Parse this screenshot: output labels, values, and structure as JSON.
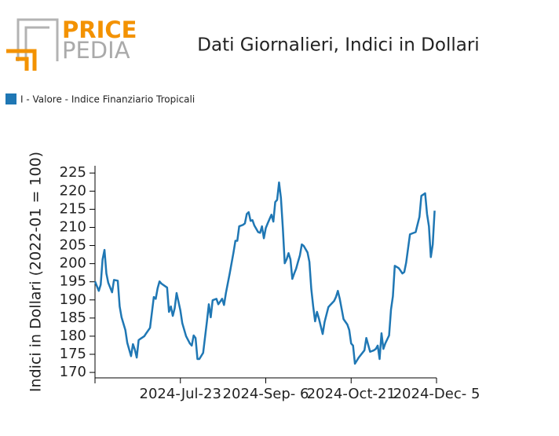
{
  "logo": {
    "top": "PRICE",
    "bottom": "PEDIA"
  },
  "chart_data": {
    "type": "line",
    "title": "Dati Giornalieri, Indici in Dollari",
    "y_label": "Indici in Dollari (2022-01 = 100)",
    "legend": "top-left",
    "x": [
      "2024-06-08",
      "2024-06-10",
      "2024-06-11",
      "2024-06-12",
      "2024-06-13",
      "2024-06-14",
      "2024-06-15",
      "2024-06-17",
      "2024-06-18",
      "2024-06-20",
      "2024-06-21",
      "2024-06-22",
      "2024-06-24",
      "2024-06-25",
      "2024-06-27",
      "2024-06-28",
      "2024-06-29",
      "2024-06-30",
      "2024-07-01",
      "2024-07-02",
      "2024-07-04",
      "2024-07-05",
      "2024-07-07",
      "2024-07-09",
      "2024-07-10",
      "2024-07-11",
      "2024-07-12",
      "2024-07-13",
      "2024-07-16",
      "2024-07-17",
      "2024-07-18",
      "2024-07-19",
      "2024-07-20",
      "2024-07-21",
      "2024-07-23",
      "2024-07-24",
      "2024-07-26",
      "2024-07-28",
      "2024-07-29",
      "2024-07-30",
      "2024-07-31",
      "2024-08-01",
      "2024-08-02",
      "2024-08-04",
      "2024-08-06",
      "2024-08-07",
      "2024-08-08",
      "2024-08-09",
      "2024-08-11",
      "2024-08-12",
      "2024-08-14",
      "2024-08-15",
      "2024-08-16",
      "2024-08-18",
      "2024-08-20",
      "2024-08-21",
      "2024-08-22",
      "2024-08-23",
      "2024-08-25",
      "2024-08-26",
      "2024-08-27",
      "2024-08-28",
      "2024-08-29",
      "2024-08-30",
      "2024-08-31",
      "2024-09-02",
      "2024-09-03",
      "2024-09-04",
      "2024-09-05",
      "2024-09-06",
      "2024-09-07",
      "2024-09-09",
      "2024-09-10",
      "2024-09-11",
      "2024-09-12",
      "2024-09-13",
      "2024-09-14",
      "2024-09-15",
      "2024-09-16",
      "2024-09-17",
      "2024-09-18",
      "2024-09-19",
      "2024-09-20",
      "2024-09-21",
      "2024-09-22",
      "2024-09-23",
      "2024-09-24",
      "2024-09-25",
      "2024-09-26",
      "2024-09-28",
      "2024-09-29",
      "2024-09-30",
      "2024-10-01",
      "2024-10-02",
      "2024-10-03",
      "2024-10-04",
      "2024-10-06",
      "2024-10-07",
      "2024-10-09",
      "2024-10-10",
      "2024-10-12",
      "2024-10-13",
      "2024-10-14",
      "2024-10-15",
      "2024-10-16",
      "2024-10-17",
      "2024-10-19",
      "2024-10-20",
      "2024-10-21",
      "2024-10-22",
      "2024-10-23",
      "2024-10-25",
      "2024-10-28",
      "2024-10-29",
      "2024-10-31",
      "2024-11-02",
      "2024-11-03",
      "2024-11-04",
      "2024-11-05",
      "2024-11-06",
      "2024-11-07",
      "2024-11-08",
      "2024-11-10",
      "2024-11-11",
      "2024-11-12",
      "2024-11-13",
      "2024-11-15",
      "2024-11-16",
      "2024-11-17",
      "2024-11-18",
      "2024-11-19",
      "2024-11-21",
      "2024-11-23",
      "2024-11-24",
      "2024-11-26",
      "2024-11-27",
      "2024-11-29",
      "2024-11-30",
      "2024-12-01",
      "2024-12-02",
      "2024-12-03",
      "2024-12-04"
    ],
    "series": [
      {
        "name": "I - Valore - Indice Finanziario Tropicali",
        "color": "#1f77b4",
        "values": [
          195.1,
          192.5,
          194.2,
          201.2,
          203.8,
          197.3,
          194.7,
          192.1,
          195.5,
          195.3,
          188.2,
          185.2,
          181.7,
          178.2,
          174.5,
          177.8,
          176.3,
          174.1,
          178.9,
          179.3,
          180.0,
          180.8,
          182.3,
          190.8,
          190.3,
          193.2,
          195.1,
          194.5,
          193.4,
          186.7,
          188.2,
          185.6,
          187.7,
          191.9,
          187.1,
          183.6,
          180.0,
          178.0,
          177.4,
          180.2,
          179.5,
          173.7,
          173.7,
          175.4,
          184.1,
          188.8,
          185.2,
          189.9,
          190.3,
          188.8,
          190.3,
          188.6,
          191.9,
          197.3,
          203.1,
          206.3,
          206.3,
          210.3,
          210.7,
          211.1,
          213.7,
          214.2,
          211.8,
          212.0,
          210.5,
          208.7,
          208.5,
          210.3,
          207.0,
          209.8,
          211.1,
          213.5,
          211.6,
          217.0,
          217.6,
          222.4,
          218.1,
          209.8,
          200.1,
          201.2,
          202.9,
          201.2,
          195.8,
          197.3,
          198.6,
          200.5,
          202.3,
          205.3,
          204.9,
          203.1,
          200.5,
          193.0,
          188.2,
          184.1,
          186.7,
          184.9,
          180.6,
          183.9,
          188.0,
          188.6,
          189.7,
          190.8,
          192.5,
          190.3,
          187.5,
          184.7,
          183.2,
          181.7,
          178.0,
          177.4,
          172.4,
          174.1,
          176.1,
          179.5,
          175.7,
          176.1,
          176.5,
          177.4,
          173.7,
          180.8,
          176.5,
          178.0,
          180.2,
          187.3,
          191.0,
          199.4,
          198.8,
          198.1,
          197.3,
          197.7,
          200.3,
          208.1,
          208.5,
          208.7,
          212.9,
          218.7,
          219.4,
          213.7,
          210.3,
          201.8,
          205.3,
          214.6
        ]
      }
    ],
    "xlim": [
      "2024-06-08",
      "2024-12-05"
    ],
    "xticks": [
      {
        "value": "2024-07-23",
        "label": "2024-Jul-23"
      },
      {
        "value": "2024-09-06",
        "label": "2024-Sep- 6"
      },
      {
        "value": "2024-10-21",
        "label": "2024-Oct-21"
      },
      {
        "value": "2024-12-05",
        "label": "2024-Dec- 5"
      }
    ],
    "ylim": [
      168.5,
      227
    ],
    "yticks": [
      170,
      175,
      180,
      185,
      190,
      195,
      200,
      205,
      210,
      215,
      220,
      225
    ]
  }
}
